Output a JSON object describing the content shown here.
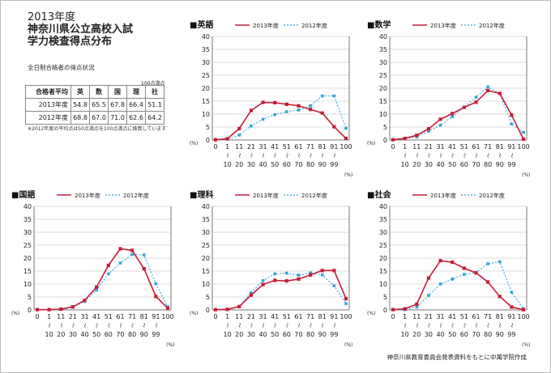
{
  "header": {
    "year": "2013年度",
    "line1": "神奈川県公立高校入試",
    "line2": "学力検査得点分布"
  },
  "table": {
    "caption": "全日制合格者の得点状況",
    "unit": "100点満点",
    "header": [
      "合格者平均",
      "英",
      "数",
      "国",
      "理",
      "社"
    ],
    "rows": [
      [
        "2013年度",
        "54.8",
        "65.5",
        "67.8",
        "66.4",
        "51.1"
      ],
      [
        "2012年度",
        "68.8",
        "67.0",
        "71.0",
        "62.6",
        "64.2"
      ]
    ],
    "note": "※2012年度の平均点は50点満点を100点満点に換算しています"
  },
  "source": "神奈川県教育委員会発表資料をもとに中萬学院作成",
  "colors": {
    "y2013": "#c41e3a",
    "y2012": "#36a3d9"
  },
  "axis_labels": {
    "percent_left": "(%)",
    "percent_right": "(%)",
    "tilde": "〜",
    "bins_top": [
      "0",
      "1",
      "11",
      "21",
      "31",
      "41",
      "51",
      "61",
      "71",
      "81",
      "91",
      "100"
    ],
    "bins_bottom": [
      "",
      "10",
      "20",
      "30",
      "40",
      "50",
      "60",
      "70",
      "80",
      "90",
      "99",
      ""
    ]
  },
  "chart_data": [
    {
      "type": "line",
      "title": "■英語",
      "ylim": [
        0,
        40
      ],
      "yticks": [
        0,
        5,
        10,
        15,
        20,
        25,
        30,
        35,
        40
      ],
      "categories": [
        "0",
        "1〜10",
        "11〜20",
        "21〜30",
        "31〜40",
        "41〜50",
        "51〜60",
        "61〜70",
        "71〜80",
        "81〜90",
        "91〜99",
        "100"
      ],
      "series": [
        {
          "name": "2013年度",
          "values": [
            0.1,
            0.5,
            4.4,
            11.4,
            14.5,
            14.4,
            13.8,
            13.2,
            11.8,
            10.4,
            5.1,
            0.6
          ]
        },
        {
          "name": "2012年度",
          "values": [
            0.1,
            0.3,
            1.9,
            5.4,
            8.0,
            9.8,
            10.9,
            11.6,
            13.2,
            17.0,
            17.0,
            4.5
          ]
        }
      ]
    },
    {
      "type": "line",
      "title": "■数学",
      "ylim": [
        0,
        40
      ],
      "yticks": [
        0,
        5,
        10,
        15,
        20,
        25,
        30,
        35,
        40
      ],
      "categories": [
        "0",
        "1〜10",
        "11〜20",
        "21〜30",
        "31〜40",
        "41〜50",
        "51〜60",
        "61〜70",
        "71〜80",
        "81〜90",
        "91〜99",
        "100"
      ],
      "series": [
        {
          "name": "2013年度",
          "values": [
            0.1,
            0.6,
            1.8,
            4.3,
            8.0,
            10.2,
            12.6,
            14.6,
            19.1,
            18.0,
            9.6,
            0.3
          ]
        },
        {
          "name": "2012年度",
          "values": [
            0.1,
            0.6,
            1.2,
            3.4,
            5.7,
            9.0,
            12.7,
            16.5,
            20.5,
            17.9,
            6.2,
            2.9
          ]
        }
      ]
    },
    {
      "type": "line",
      "title": "■国語",
      "ylim": [
        0,
        40
      ],
      "yticks": [
        0,
        5,
        10,
        15,
        20,
        25,
        30,
        35,
        40
      ],
      "categories": [
        "0",
        "1〜10",
        "11〜20",
        "21〜30",
        "31〜40",
        "41〜50",
        "51〜60",
        "61〜70",
        "71〜80",
        "81〜90",
        "91〜99",
        "100"
      ],
      "series": [
        {
          "name": "2013年度",
          "values": [
            0.1,
            0.1,
            0.3,
            1.2,
            3.7,
            8.8,
            17.2,
            23.6,
            23.0,
            15.9,
            5.2,
            0.7
          ]
        },
        {
          "name": "2012年度",
          "values": [
            0.1,
            0.1,
            0.2,
            1.0,
            3.3,
            7.7,
            13.9,
            18.1,
            21.4,
            21.2,
            10.1,
            1.2
          ]
        }
      ]
    },
    {
      "type": "line",
      "title": "■理科",
      "ylim": [
        0,
        40
      ],
      "yticks": [
        0,
        5,
        10,
        15,
        20,
        25,
        30,
        35,
        40
      ],
      "categories": [
        "0",
        "1〜10",
        "11〜20",
        "21〜30",
        "31〜40",
        "41〜50",
        "51〜60",
        "61〜70",
        "71〜80",
        "81〜90",
        "91〜99",
        "100"
      ],
      "series": [
        {
          "name": "2013年度",
          "values": [
            0.1,
            0.2,
            1.3,
            5.7,
            9.8,
            11.4,
            11.2,
            11.9,
            13.5,
            15.2,
            15.2,
            4.3
          ]
        },
        {
          "name": "2012年度",
          "values": [
            0.1,
            0.2,
            1.3,
            6.6,
            11.3,
            13.9,
            14.2,
            13.4,
            14.3,
            13.5,
            9.3,
            2.4
          ]
        }
      ]
    },
    {
      "type": "line",
      "title": "■社会",
      "ylim": [
        0,
        40
      ],
      "yticks": [
        0,
        5,
        10,
        15,
        20,
        25,
        30,
        35,
        40
      ],
      "categories": [
        "0",
        "1〜10",
        "11〜20",
        "21〜30",
        "31〜40",
        "41〜50",
        "51〜60",
        "61〜70",
        "71〜80",
        "81〜90",
        "91〜99",
        "100"
      ],
      "series": [
        {
          "name": "2013年度",
          "values": [
            0.1,
            0.4,
            2.2,
            12.3,
            19.0,
            18.4,
            16.1,
            14.3,
            10.8,
            5.2,
            1.1,
            0.1
          ]
        },
        {
          "name": "2012年度",
          "values": [
            0.1,
            0.1,
            1.1,
            5.6,
            10.0,
            11.9,
            13.7,
            14.4,
            17.8,
            18.6,
            6.8,
            0.4
          ]
        }
      ]
    }
  ]
}
